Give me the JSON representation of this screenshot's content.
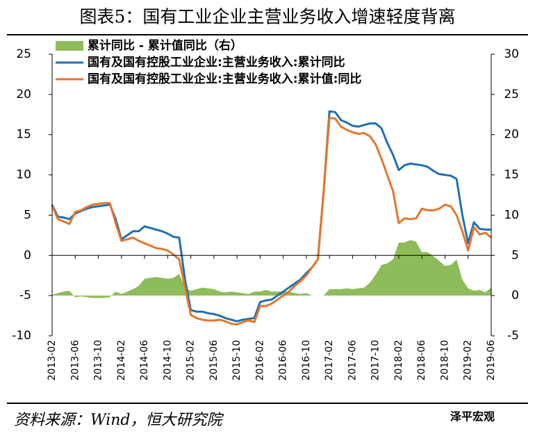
{
  "chart_data": {
    "type": "line",
    "title": "图表5：国有工业企业主营业务收入增速轻度背离",
    "source": "资料来源：Wind，恒大研究院",
    "watermark": "泽平宏观",
    "categories": [
      "2013-02",
      null,
      null,
      null,
      "2013-06",
      null,
      null,
      null,
      "2013-10",
      null,
      null,
      null,
      "2014-02",
      null,
      null,
      null,
      "2014-06",
      null,
      null,
      null,
      "2014-10",
      null,
      null,
      null,
      "2015-02",
      null,
      null,
      null,
      "2015-06",
      null,
      null,
      null,
      "2015-10",
      null,
      null,
      null,
      "2016-02",
      null,
      null,
      null,
      "2016-06",
      null,
      null,
      null,
      "2016-10",
      null,
      null,
      null,
      "2017-02",
      null,
      null,
      null,
      "2017-06",
      null,
      null,
      null,
      "2017-10",
      null,
      null,
      null,
      "2018-02",
      null,
      null,
      null,
      "2018-06",
      null,
      null,
      null,
      "2018-10",
      null,
      null,
      null,
      "2019-02",
      null,
      null,
      null,
      "2019-06"
    ],
    "ylim": [
      -10,
      25
    ],
    "yticks": [
      -10,
      -5,
      0,
      5,
      10,
      15,
      20,
      25
    ],
    "y2lim": [
      -5,
      30
    ],
    "y2ticks": [
      -5,
      0,
      5,
      10,
      15,
      20,
      25,
      30
    ],
    "legend": "top-left",
    "series": [
      {
        "name": "累计同比 - 累计值同比（右）",
        "type": "area",
        "axis": "y2",
        "color": "#8fbc5a",
        "values": [
          0.1,
          0.3,
          0.5,
          0.6,
          -0.2,
          -0.1,
          -0.2,
          -0.3,
          -0.3,
          -0.3,
          -0.2,
          0.5,
          0.2,
          0.5,
          0.8,
          1.2,
          2.1,
          2.2,
          2.3,
          2.2,
          2.1,
          2.2,
          2.7,
          1.0,
          0.6,
          0.8,
          1.0,
          0.9,
          0.8,
          0.5,
          0.4,
          0.5,
          0.4,
          0.3,
          0.2,
          0.5,
          0.5,
          0.7,
          0.5,
          0.5,
          0.5,
          0.5,
          0.3,
          0.2,
          0.3,
          0,
          0,
          0,
          0.8,
          0.8,
          0.8,
          0.9,
          0.8,
          0.9,
          1.0,
          1.6,
          2.6,
          3.8,
          4.0,
          4.5,
          6.6,
          6.6,
          6.9,
          6.7,
          5.4,
          5.4,
          4.9,
          4.3,
          3.7,
          3.8,
          4.5,
          2,
          0.9,
          0.6,
          0.7,
          0.4,
          1.0
        ]
      },
      {
        "name": "国有及国有控股工业企业:主营业务收入:累计同比",
        "type": "line",
        "color": "#1f6fb5",
        "values": [
          6.3,
          4.8,
          4.7,
          4.5,
          5.2,
          5.5,
          5.8,
          6.0,
          6.1,
          6.2,
          6.3,
          4.5,
          2.0,
          2.5,
          3.0,
          3.0,
          3.6,
          3.4,
          3.2,
          3.0,
          2.7,
          2.3,
          2.2,
          -3,
          -6.8,
          -7.0,
          -7.0,
          -7.2,
          -7.3,
          -7.5,
          -7.8,
          -8.0,
          -8.2,
          -8.0,
          -7.9,
          -7.8,
          -5.8,
          -5.6,
          -5.5,
          -5.0,
          -4.5,
          -4.0,
          -3.5,
          -3.0,
          -2.2,
          -1.5,
          -0.5,
          8,
          17.9,
          17.8,
          16.8,
          16.5,
          16.1,
          16.0,
          16.2,
          16.4,
          16.4,
          15.8,
          14.0,
          12.5,
          10.6,
          11.2,
          11.4,
          11.3,
          11.2,
          11.0,
          10.5,
          10.1,
          10.0,
          9.9,
          9.5,
          5,
          1.5,
          4.1,
          3.3,
          3.2,
          3.2
        ]
      },
      {
        "name": "国有及国有控股工业企业:主营业务收入:累计值:同比",
        "type": "line",
        "color": "#e5762a",
        "values": [
          6.2,
          4.5,
          4.2,
          3.9,
          5.4,
          5.6,
          6.0,
          6.3,
          6.4,
          6.5,
          6.5,
          4.0,
          1.8,
          2.0,
          2.2,
          1.8,
          1.5,
          1.2,
          0.9,
          0.8,
          0.6,
          0.1,
          -0.5,
          -4,
          -7.4,
          -7.8,
          -8.0,
          -8.1,
          -8.1,
          -8.0,
          -8.2,
          -8.5,
          -8.6,
          -8.3,
          -8.1,
          -8.3,
          -6.3,
          -6.3,
          -6.0,
          -5.5,
          -5.0,
          -4.5,
          -3.8,
          -3.2,
          -2.5,
          -1.5,
          -0.5,
          8,
          17.1,
          17.0,
          16.0,
          15.6,
          15.3,
          15.1,
          15.2,
          14.8,
          13.8,
          12.0,
          10.0,
          8,
          4.0,
          4.6,
          4.5,
          4.6,
          5.8,
          5.6,
          5.6,
          5.8,
          6.3,
          6.1,
          5.0,
          3,
          0.6,
          3.5,
          2.6,
          2.8,
          2.2
        ]
      }
    ]
  }
}
